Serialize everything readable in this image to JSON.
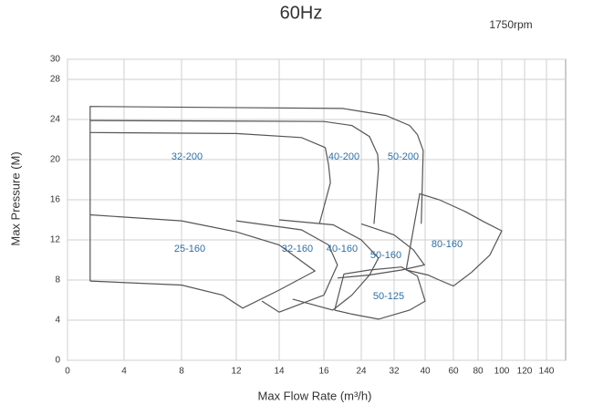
{
  "chart_data": {
    "type": "line",
    "title": "60Hz",
    "subtitle": "1750rpm",
    "x_label": "Max Flow Rate (m³/h)",
    "y_label": "Max Pressure (M)",
    "xticks": [
      0,
      4,
      8,
      12,
      14,
      16,
      24,
      32,
      40,
      60,
      80,
      100,
      120,
      140
    ],
    "ylim": [
      0,
      30
    ],
    "yticks": [
      0,
      4,
      8,
      12,
      16,
      20,
      24,
      28,
      30
    ],
    "grid": true,
    "color": "#555555",
    "series": [
      {
        "name": "32-200",
        "x": [
          1.6,
          12,
          15,
          16.3,
          17,
          17.4,
          15.8
        ],
        "values": [
          22.7,
          22.6,
          22.2,
          21.2,
          19.5,
          17.7,
          13.6
        ]
      },
      {
        "name": "40-200",
        "x": [
          1.6,
          16,
          22,
          26,
          28,
          28.2,
          27.1
        ],
        "values": [
          23.9,
          23.8,
          23.4,
          22.3,
          20.5,
          19.1,
          13.6
        ]
      },
      {
        "name": "50-200",
        "x": [
          1.6,
          1.6,
          20,
          30,
          36,
          38,
          39.5,
          39
        ],
        "values": [
          7.9,
          25.3,
          25.1,
          24.4,
          23.4,
          22.5,
          20.9,
          13.6
        ]
      },
      {
        "name": "25-160",
        "x": [
          1.6,
          8,
          12,
          14,
          15.6,
          14,
          12.3,
          11,
          8,
          1.6
        ],
        "values": [
          14.5,
          13.9,
          12.8,
          11.5,
          8.9,
          7,
          5.2,
          6.5,
          7.5,
          7.9
        ]
      },
      {
        "name": "32-160",
        "x": [
          13.2,
          14,
          16,
          18.9,
          17,
          15,
          12
        ],
        "values": [
          5.9,
          4.8,
          6.5,
          9.5,
          11.5,
          13,
          13.9
        ]
      },
      {
        "name": "40-160",
        "x": [
          14.6,
          17.9,
          22,
          26,
          28.2,
          24,
          18,
          14
        ],
        "values": [
          6.1,
          5,
          6.5,
          8.5,
          10.2,
          12,
          13.5,
          14
        ]
      },
      {
        "name": "50-160",
        "x": [
          18.9,
          26,
          33.9,
          39.8,
          37,
          32,
          24
        ],
        "values": [
          8.2,
          8.5,
          9,
          9.5,
          11,
          12.5,
          13.6
        ]
      },
      {
        "name": "50-125",
        "x": [
          18.3,
          20.3,
          26,
          33.9,
          38,
          40,
          36,
          28.2,
          22,
          18.3
        ],
        "values": [
          5,
          8.6,
          9,
          9.3,
          8.4,
          5.9,
          5,
          4.1,
          4.6,
          5
        ]
      },
      {
        "name": "80-160",
        "x": [
          35.1,
          38.6,
          50,
          70,
          85,
          100,
          90,
          75,
          60,
          50,
          42,
          35.1
        ],
        "values": [
          9,
          16.6,
          16,
          14.8,
          13.8,
          12.9,
          10.5,
          8.8,
          7.4,
          8,
          8.5,
          9
        ]
      }
    ]
  }
}
